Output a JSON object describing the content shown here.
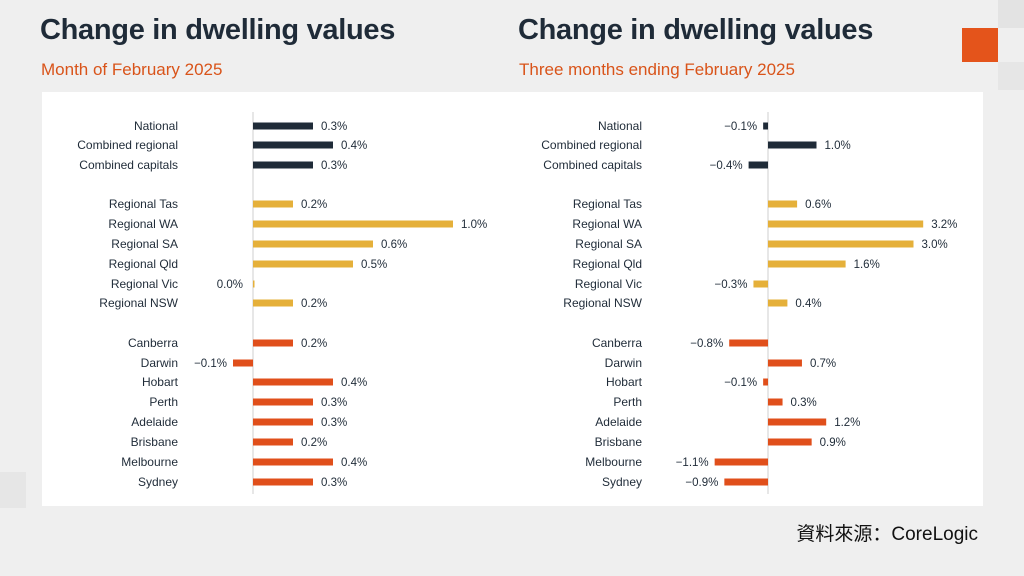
{
  "left": {
    "title": "Change in dwelling values",
    "subtitle": "Month of February 2025"
  },
  "right": {
    "title": "Change in dwelling values",
    "subtitle": "Three months ending February 2025"
  },
  "source": "資料來源：CoreLogic",
  "colors": {
    "summary": "#1f2b38",
    "regional": "#e5b03a",
    "capital": "#e04f1b"
  },
  "chart_data": [
    {
      "type": "bar",
      "orientation": "horizontal",
      "title": "Change in dwelling values",
      "subtitle": "Month of February 2025",
      "unit": "%",
      "groups": [
        {
          "color": "summary",
          "categories": [
            "National",
            "Combined regional",
            "Combined capitals"
          ],
          "values": [
            0.3,
            0.4,
            0.3
          ]
        },
        {
          "color": "regional",
          "categories": [
            "Regional Tas",
            "Regional WA",
            "Regional SA",
            "Regional Qld",
            "Regional Vic",
            "Regional NSW"
          ],
          "values": [
            0.2,
            1.0,
            0.6,
            0.5,
            0.0,
            0.2
          ]
        },
        {
          "color": "capital",
          "categories": [
            "Canberra",
            "Darwin",
            "Hobart",
            "Perth",
            "Adelaide",
            "Brisbane",
            "Melbourne",
            "Sydney"
          ],
          "values": [
            0.2,
            -0.1,
            0.4,
            0.3,
            0.3,
            0.2,
            0.4,
            0.3
          ]
        }
      ],
      "labels": [
        "0.3%",
        "0.4%",
        "0.3%",
        "0.2%",
        "1.0%",
        "0.6%",
        "0.5%",
        "0.0%",
        "0.2%",
        "0.2%",
        "−0.1%",
        "0.4%",
        "0.3%",
        "0.3%",
        "0.2%",
        "0.4%",
        "0.3%"
      ]
    },
    {
      "type": "bar",
      "orientation": "horizontal",
      "title": "Change in dwelling values",
      "subtitle": "Three months ending February 2025",
      "unit": "%",
      "groups": [
        {
          "color": "summary",
          "categories": [
            "National",
            "Combined regional",
            "Combined capitals"
          ],
          "values": [
            -0.1,
            1.0,
            -0.4
          ]
        },
        {
          "color": "regional",
          "categories": [
            "Regional Tas",
            "Regional WA",
            "Regional SA",
            "Regional Qld",
            "Regional Vic",
            "Regional NSW"
          ],
          "values": [
            0.6,
            3.2,
            3.0,
            1.6,
            -0.3,
            0.4
          ]
        },
        {
          "color": "capital",
          "categories": [
            "Canberra",
            "Darwin",
            "Hobart",
            "Perth",
            "Adelaide",
            "Brisbane",
            "Melbourne",
            "Sydney"
          ],
          "values": [
            -0.8,
            0.7,
            -0.1,
            0.3,
            1.2,
            0.9,
            -1.1,
            -0.9
          ]
        }
      ],
      "labels": [
        "−0.1%",
        "1.0%",
        "−0.4%",
        "0.6%",
        "3.2%",
        "3.0%",
        "1.6%",
        "−0.3%",
        "0.4%",
        "−0.8%",
        "0.7%",
        "−0.1%",
        "0.3%",
        "1.2%",
        "0.9%",
        "−1.1%",
        "−0.9%"
      ]
    }
  ]
}
